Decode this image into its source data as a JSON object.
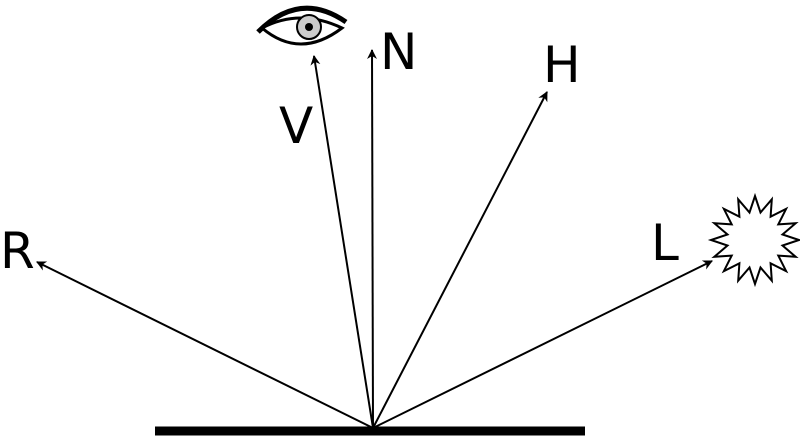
{
  "diagram": {
    "vectors": {
      "R": "R",
      "V": "V",
      "N": "N",
      "H": "H",
      "L": "L"
    },
    "icons": {
      "viewer": "eye-icon",
      "light": "light-source-icon"
    },
    "colors": {
      "stroke": "#000000",
      "background": "#ffffff",
      "iris": "#cccccc"
    }
  }
}
